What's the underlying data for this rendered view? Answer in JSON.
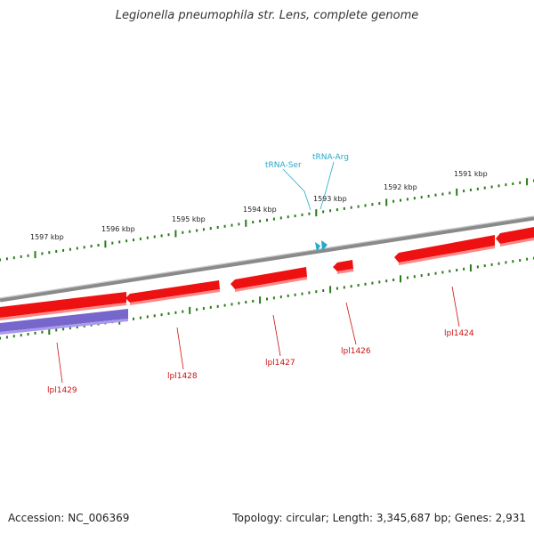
{
  "title": "Legionella pneumophila str. Lens, complete genome",
  "footer": {
    "accession": "Accession: NC_006369",
    "summary": "Topology: circular; Length: 3,345,687 bp; Genes: 2,931"
  },
  "colors": {
    "backbone": "#8a8a8a",
    "gene_forward": "#ee1111",
    "gene_reverse": "#7766cc",
    "tick": "#2a7a1a",
    "gene_label": "#cc1111",
    "trna": "#22aacc"
  },
  "ruler_labels": [
    "1597 kbp",
    "1596 kbp",
    "1595 kbp",
    "1594 kbp",
    "1593 kbp",
    "1592 kbp",
    "1591 kbp"
  ],
  "genes": [
    {
      "label": "lpl1429",
      "strand": "reverse"
    },
    {
      "label": "lpl1428",
      "strand": "forward"
    },
    {
      "label": "lpl1427",
      "strand": "forward"
    },
    {
      "label": "lpl1426",
      "strand": "forward"
    },
    {
      "label": "lpl1424",
      "strand": "forward"
    }
  ],
  "trnas": [
    {
      "label": "tRNA-Ser"
    },
    {
      "label": "tRNA-Arg"
    }
  ]
}
